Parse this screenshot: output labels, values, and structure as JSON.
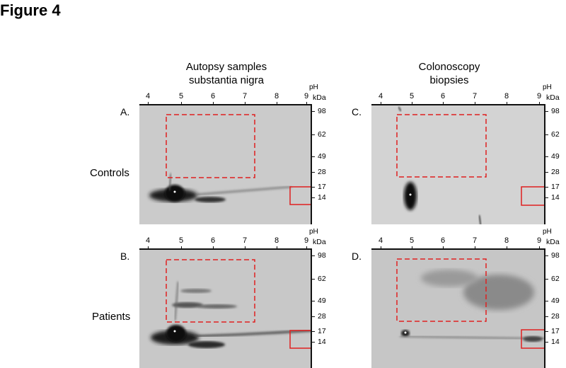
{
  "figure_title": "Figure 4",
  "columns": [
    {
      "line1": "Autopsy samples",
      "line2": "substantia nigra"
    },
    {
      "line1": "Colonoscopy",
      "line2": "biopsies"
    }
  ],
  "rows": [
    "Controls",
    "Patients"
  ],
  "panels": {
    "A": "A.",
    "B": "B.",
    "C": "C.",
    "D": "D."
  },
  "ph_ticks": [
    "4",
    "5",
    "6",
    "7",
    "8",
    "9"
  ],
  "ph_unit": "pH",
  "kda_unit": "kDa",
  "kda_ticks": [
    "98",
    "62",
    "49",
    "28",
    "17",
    "14"
  ],
  "highlight_color": "#e02020"
}
